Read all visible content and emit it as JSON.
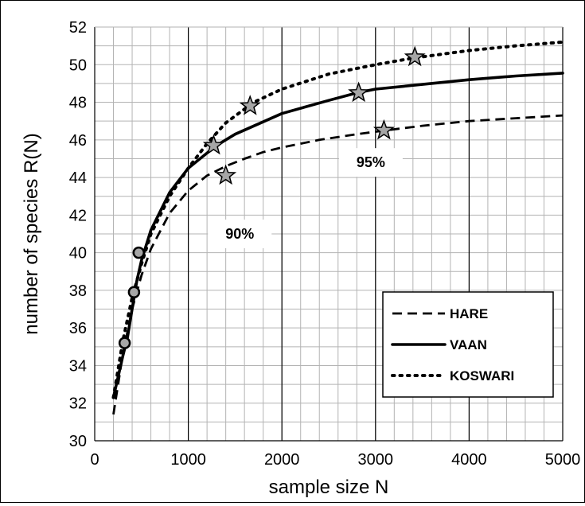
{
  "chart_data": {
    "type": "line",
    "title": "",
    "xlabel": "sample size  N",
    "ylabel": "number  of  species  R(N)",
    "xlim": [
      0,
      5000
    ],
    "ylim": [
      30,
      52
    ],
    "x_ticks": [
      "0",
      "1000",
      "2000",
      "3000",
      "4000",
      "5000"
    ],
    "y_ticks": [
      "30",
      "32",
      "34",
      "36",
      "38",
      "40",
      "42",
      "44",
      "46",
      "48",
      "50",
      "52"
    ],
    "major_grid": {
      "x_step": 1000,
      "y_step": 2
    },
    "minor_grid": {
      "x_step": 200,
      "y_step": 1
    },
    "series": [
      {
        "name": "HARE",
        "style": "dashed",
        "color": "#000000",
        "x": [
          200,
          300,
          400,
          500,
          600,
          800,
          1000,
          1200,
          1400,
          1600,
          1800,
          2000,
          2400,
          2800,
          3100,
          3500,
          4000,
          4500,
          5000
        ],
        "y": [
          31.4,
          34.6,
          37.0,
          38.8,
          40.2,
          42.1,
          43.3,
          44.1,
          44.6,
          45.0,
          45.35,
          45.6,
          46.0,
          46.3,
          46.5,
          46.75,
          47.0,
          47.15,
          47.3
        ]
      },
      {
        "name": "VAAN",
        "style": "solid",
        "color": "#000000",
        "x": [
          200,
          300,
          350,
          400,
          450,
          500,
          600,
          800,
          1000,
          1200,
          1300,
          1500,
          2000,
          2500,
          2800,
          3000,
          3500,
          4000,
          4500,
          5000
        ],
        "y": [
          32.3,
          34.5,
          35.5,
          37.0,
          38.5,
          39.6,
          41.2,
          43.2,
          44.5,
          45.3,
          45.7,
          46.3,
          47.4,
          48.1,
          48.5,
          48.7,
          48.95,
          49.2,
          49.4,
          49.55
        ]
      },
      {
        "name": "KOSWARI",
        "style": "dotted",
        "color": "#000000",
        "x": [
          200,
          300,
          400,
          500,
          600,
          800,
          1000,
          1200,
          1400,
          1700,
          2000,
          2500,
          3000,
          3400,
          4000,
          4500,
          5000
        ],
        "y": [
          32.3,
          35.3,
          37.6,
          39.4,
          41.0,
          43.0,
          44.5,
          45.8,
          46.9,
          48.0,
          48.7,
          49.5,
          50.0,
          50.35,
          50.75,
          51.0,
          51.2
        ]
      }
    ],
    "circle_markers": [
      {
        "x": 320,
        "y": 35.2
      },
      {
        "x": 420,
        "y": 37.9
      },
      {
        "x": 470,
        "y": 40.0
      }
    ],
    "star_markers": [
      {
        "x": 1270,
        "y": 45.7
      },
      {
        "x": 1400,
        "y": 44.1
      },
      {
        "x": 1660,
        "y": 47.8
      },
      {
        "x": 2820,
        "y": 48.5
      },
      {
        "x": 3090,
        "y": 46.5
      },
      {
        "x": 3420,
        "y": 50.4
      }
    ],
    "annotations": [
      {
        "text": "90%",
        "x": 1550,
        "y": 41.0
      },
      {
        "text": "95%",
        "x": 2950,
        "y": 44.8
      }
    ],
    "legend": {
      "placement": "bottom-right",
      "entries": [
        "HARE",
        "VAAN",
        "KOSWARI"
      ]
    },
    "colors": {
      "line": "#000000",
      "grid": "#b3b3b3",
      "major_grid": "#000000",
      "marker_fill": "#a6a6a6"
    }
  }
}
